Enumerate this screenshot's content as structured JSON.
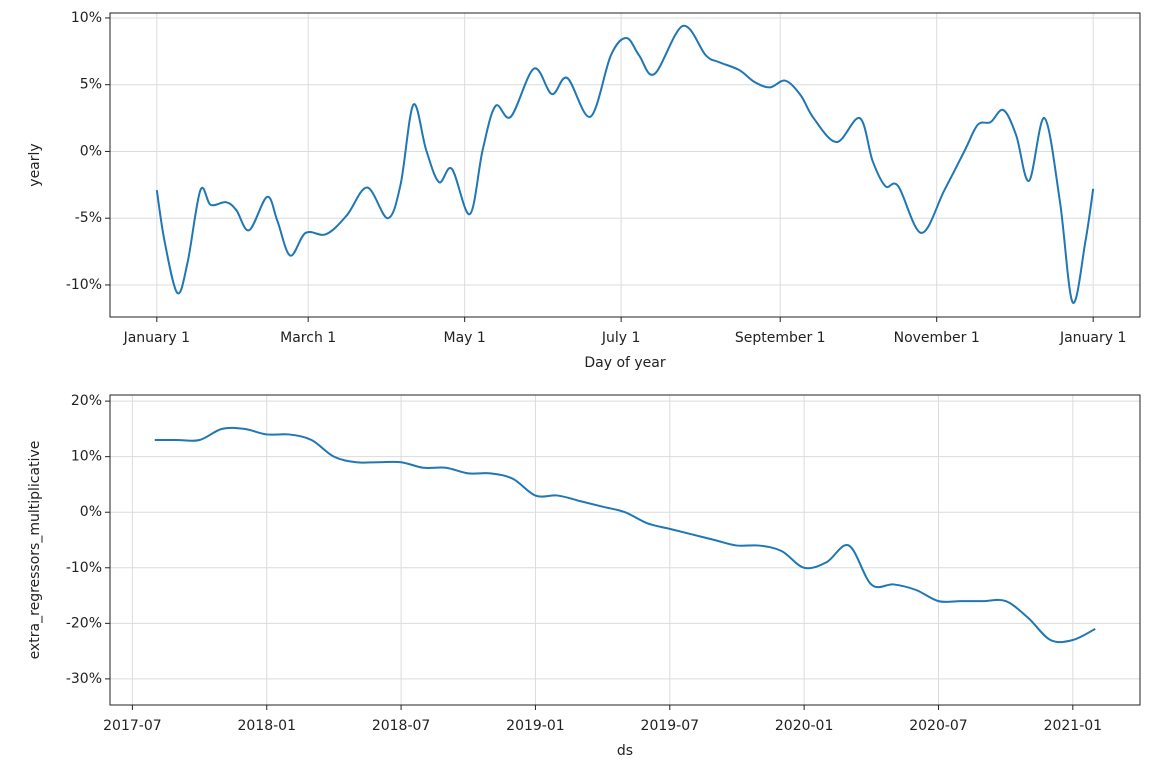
{
  "chart_data": [
    {
      "type": "line",
      "xlabel": "Day of year",
      "ylabel": "yearly",
      "xlim": [
        -18.25,
        383.25
      ],
      "ylim": [
        -12.4,
        10.37
      ],
      "grid": true,
      "xticks": [
        {
          "value": 0,
          "label": "January 1"
        },
        {
          "value": 59,
          "label": "March 1"
        },
        {
          "value": 120,
          "label": "May 1"
        },
        {
          "value": 181,
          "label": "July 1"
        },
        {
          "value": 243,
          "label": "September 1"
        },
        {
          "value": 304,
          "label": "November 1"
        },
        {
          "value": 365,
          "label": "January 1"
        }
      ],
      "yticks": [
        {
          "value": 10,
          "label": "10%"
        },
        {
          "value": 5,
          "label": "5%"
        },
        {
          "value": 0,
          "label": "0%"
        },
        {
          "value": -5,
          "label": "-5%"
        },
        {
          "value": -10,
          "label": "-10%"
        }
      ],
      "x": [
        0,
        3,
        8,
        12,
        17,
        21,
        27,
        31,
        36,
        43,
        47,
        52,
        58,
        66,
        74,
        82,
        90,
        95,
        100,
        105,
        110,
        115,
        122,
        127,
        132,
        138,
        147,
        154,
        160,
        169,
        177,
        183,
        188,
        194,
        205,
        214,
        219,
        227,
        233,
        239,
        245,
        251,
        256,
        265,
        274,
        279,
        284,
        289,
        298,
        307,
        315,
        320,
        325,
        330,
        335,
        340,
        346,
        352,
        357,
        362,
        365
      ],
      "series": [
        {
          "color": "#1f77b4",
          "values": [
            -2.9,
            -6.7,
            -10.6,
            -8.3,
            -2.9,
            -4.0,
            -3.8,
            -4.4,
            -5.9,
            -3.4,
            -5.2,
            -7.8,
            -6.1,
            -6.2,
            -4.8,
            -2.7,
            -5.0,
            -2.5,
            3.5,
            0.1,
            -2.3,
            -1.3,
            -4.7,
            0.1,
            3.4,
            2.6,
            6.2,
            4.3,
            5.5,
            2.6,
            7.2,
            8.5,
            7.2,
            5.8,
            9.4,
            7.2,
            6.7,
            6.1,
            5.2,
            4.8,
            5.3,
            4.2,
            2.5,
            0.7,
            2.5,
            -0.7,
            -2.6,
            -2.6,
            -6.1,
            -2.9,
            0.1,
            2.0,
            2.2,
            3.1,
            1.2,
            -2.2,
            2.5,
            -3.7,
            -11.3,
            -6.7,
            -2.8
          ]
        }
      ]
    },
    {
      "type": "line",
      "xlabel": "ds",
      "ylabel": "extra_regressors_multiplicative",
      "xlim": [
        "2017-06",
        "2021-04"
      ],
      "ylim": [
        -34.7,
        21.1
      ],
      "grid": true,
      "xticks": [
        "2017-07",
        "2018-01",
        "2018-07",
        "2019-01",
        "2019-07",
        "2020-01",
        "2020-07",
        "2021-01"
      ],
      "yticks": [
        {
          "value": 20,
          "label": "20%"
        },
        {
          "value": 10,
          "label": "10%"
        },
        {
          "value": 0,
          "label": "0%"
        },
        {
          "value": -10,
          "label": "-10%"
        },
        {
          "value": -20,
          "label": "-20%"
        },
        {
          "value": -30,
          "label": "-30%"
        }
      ],
      "x": [
        "2017-08",
        "2017-09",
        "2017-10",
        "2017-11",
        "2017-12",
        "2018-01",
        "2018-02",
        "2018-03",
        "2018-04",
        "2018-05",
        "2018-06",
        "2018-07",
        "2018-08",
        "2018-09",
        "2018-10",
        "2018-11",
        "2018-12",
        "2019-01",
        "2019-02",
        "2019-03",
        "2019-04",
        "2019-05",
        "2019-06",
        "2019-07",
        "2019-08",
        "2019-09",
        "2019-10",
        "2019-11",
        "2019-12",
        "2020-01",
        "2020-02",
        "2020-03",
        "2020-04",
        "2020-05",
        "2020-06",
        "2020-07",
        "2020-08",
        "2020-09",
        "2020-10",
        "2020-11",
        "2020-12",
        "2021-01",
        "2021-02"
      ],
      "series": [
        {
          "color": "#1f77b4",
          "values": [
            13,
            13,
            13,
            15,
            15,
            14,
            14,
            13,
            10,
            9,
            9,
            9,
            8,
            8,
            7,
            7,
            6,
            3,
            3,
            2,
            1,
            0,
            -2,
            -3,
            -4,
            -5,
            -6,
            -6,
            -7,
            -10,
            -9,
            -6,
            -13,
            -13,
            -14,
            -16,
            -16,
            -16,
            -16,
            -19,
            -23,
            -23,
            -21
          ]
        }
      ]
    }
  ]
}
